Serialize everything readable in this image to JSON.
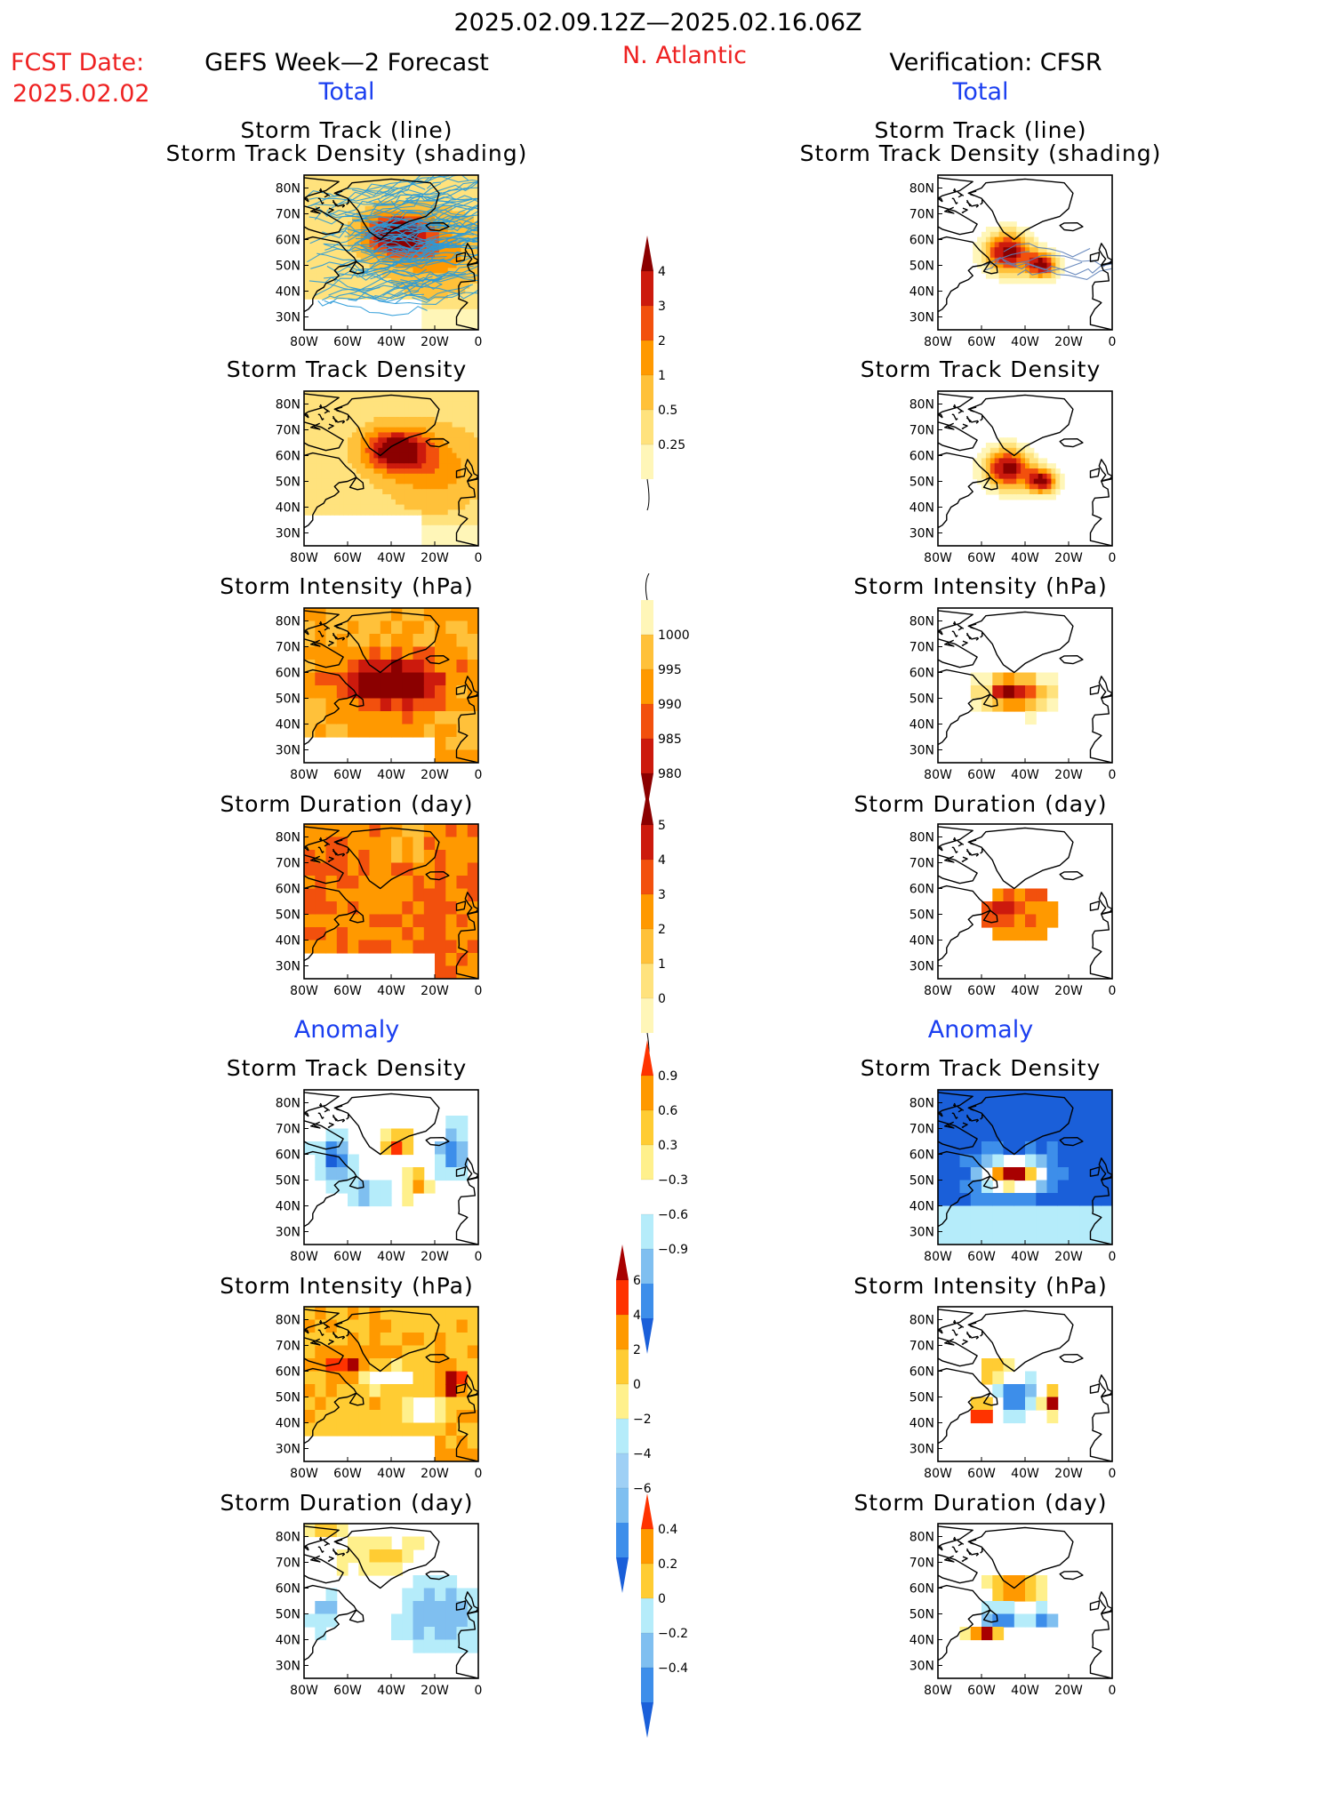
{
  "header": {
    "date_range": "2025.02.09.12Z—2025.02.16.06Z",
    "fcst_label": "FCST Date:",
    "fcst_date": "2025.02.02",
    "left_model": "GEFS Week—2 Forecast",
    "region": "N. Atlantic",
    "right_model": "Verification: CFSR"
  },
  "sections": {
    "total": "Total",
    "anomaly": "Anomaly"
  },
  "panel_titles": {
    "track_line": "Storm Track (line)",
    "track_density_shading": "Storm Track Density (shading)",
    "track_density": "Storm Track Density",
    "intensity": "Storm Intensity (hPa)",
    "duration": "Storm Duration (day)"
  },
  "axes": {
    "lat_labels": [
      "80N",
      "70N",
      "60N",
      "50N",
      "40N",
      "30N"
    ],
    "lon_labels": [
      "80W",
      "60W",
      "40W",
      "20W",
      "0"
    ]
  },
  "colorbars": {
    "total_density": {
      "ticks": [
        "4",
        "3",
        "2",
        "1",
        "0.5",
        "0.25"
      ],
      "colors": [
        "#8b0000",
        "#cc1a0d",
        "#f2500d",
        "#ff9900",
        "#ffc13a",
        "#ffe27d",
        "#fff6b8"
      ]
    },
    "total_intensity": {
      "ticks": [
        "1000",
        "995",
        "990",
        "985",
        "980"
      ],
      "colors": [
        "#fff6b8",
        "#ffc13a",
        "#ff9900",
        "#f2500d",
        "#cc1a0d",
        "#8b0000"
      ]
    },
    "total_duration": {
      "ticks": [
        "5",
        "4",
        "3",
        "2",
        "1",
        "0"
      ],
      "colors": [
        "#8b0000",
        "#cc1a0d",
        "#f2500d",
        "#ff9900",
        "#ffc13a",
        "#ffe27d",
        "#fff6b8"
      ]
    },
    "anom_density": {
      "ticks": [
        "0.9",
        "0.6",
        "0.3",
        "−0.3",
        "−0.6",
        "−0.9"
      ],
      "colors": [
        "#ff3300",
        "#ff9900",
        "#ffcc33",
        "#fff08c",
        "#ffffff",
        "#b5ecfa",
        "#7fbff0",
        "#3d8eea",
        "#1a5fd9"
      ]
    },
    "anom_intensity": {
      "ticks": [
        "6",
        "4",
        "2",
        "0",
        "−2",
        "−4",
        "−6"
      ],
      "colors": [
        "#a80000",
        "#ff3300",
        "#ff9900",
        "#ffcc33",
        "#fff08c",
        "#b5ecfa",
        "#9fd0f5",
        "#7fbff0",
        "#3d8eea",
        "#1a5fd9"
      ]
    },
    "anom_duration": {
      "ticks": [
        "0.4",
        "0.2",
        "0",
        "−0.2",
        "−0.4"
      ],
      "colors": [
        "#ff3300",
        "#ff9900",
        "#ffcc33",
        "#b5ecfa",
        "#7fbff0",
        "#3d8eea",
        "#1a5fd9"
      ]
    }
  }
}
